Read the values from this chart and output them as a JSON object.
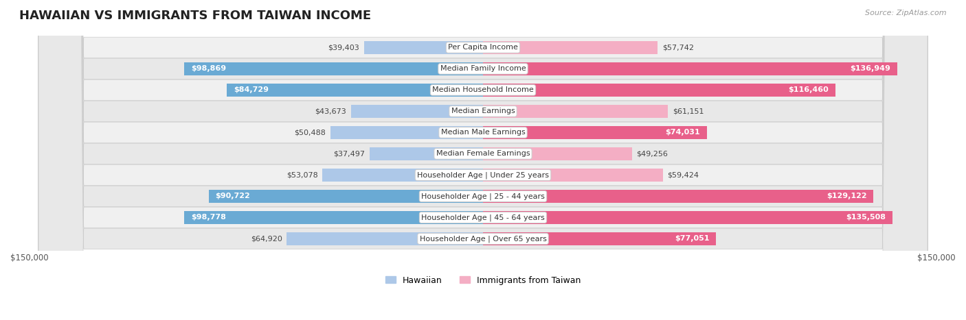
{
  "title": "HAWAIIAN VS IMMIGRANTS FROM TAIWAN INCOME",
  "source": "Source: ZipAtlas.com",
  "categories": [
    "Per Capita Income",
    "Median Family Income",
    "Median Household Income",
    "Median Earnings",
    "Median Male Earnings",
    "Median Female Earnings",
    "Householder Age | Under 25 years",
    "Householder Age | 25 - 44 years",
    "Householder Age | 45 - 64 years",
    "Householder Age | Over 65 years"
  ],
  "hawaiian_values": [
    39403,
    98869,
    84729,
    43673,
    50488,
    37497,
    53078,
    90722,
    98778,
    64920
  ],
  "taiwan_values": [
    57742,
    136949,
    116460,
    61151,
    74031,
    49256,
    59424,
    129122,
    135508,
    77051
  ],
  "hawaiian_labels": [
    "$39,403",
    "$98,869",
    "$84,729",
    "$43,673",
    "$50,488",
    "$37,497",
    "$53,078",
    "$90,722",
    "$98,778",
    "$64,920"
  ],
  "taiwan_labels": [
    "$57,742",
    "$136,949",
    "$116,460",
    "$61,151",
    "$74,031",
    "$49,256",
    "$59,424",
    "$129,122",
    "$135,508",
    "$77,051"
  ],
  "max_value": 150000,
  "hawaiian_color_light": "#adc8e8",
  "hawaiian_color_dark": "#6aaad4",
  "taiwan_color_light": "#f4aec4",
  "taiwan_color_dark": "#e8608a",
  "hawaiian_threshold": 70000,
  "taiwan_threshold": 70000,
  "row_bg_even": "#f0f0f0",
  "row_bg_odd": "#e8e8e8",
  "bar_height": 0.62,
  "title_fontsize": 13,
  "axis_fontsize": 8.5,
  "label_fontsize": 8,
  "category_fontsize": 8
}
